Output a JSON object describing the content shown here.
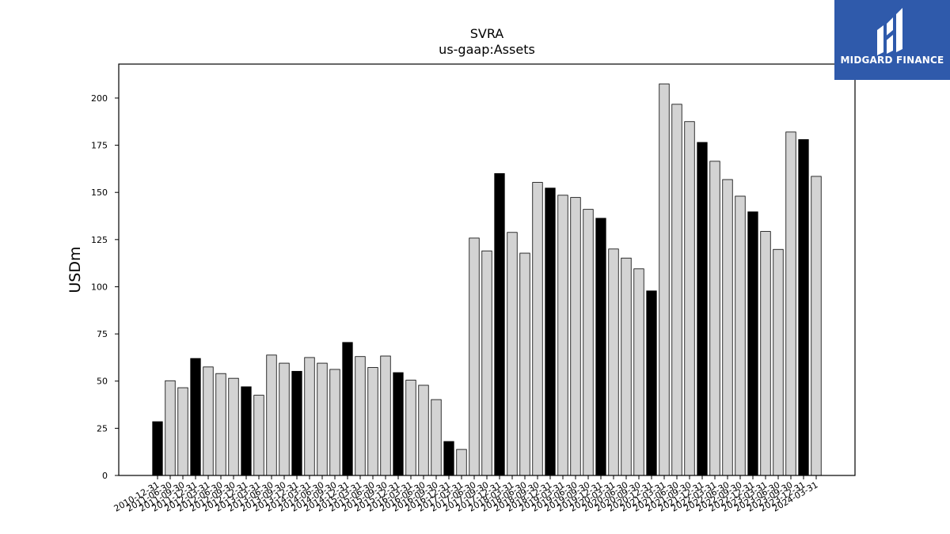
{
  "chart_data": {
    "type": "bar",
    "title": "SVRA",
    "subtitle": "us-gaap:Assets",
    "xlabel": "",
    "ylabel": "USDm",
    "ylim": [
      0,
      218
    ],
    "yticks": [
      0,
      25,
      50,
      75,
      100,
      125,
      150,
      175,
      200
    ],
    "grid": false,
    "legend": "none",
    "colors": {
      "annual": "#000000",
      "quarterly": "#d3d3d3",
      "edge": "#000000"
    },
    "categories": [
      "2010-12-31",
      "2011-06-30",
      "2011-09-30",
      "2011-12-31",
      "2012-03-31",
      "2012-06-30",
      "2012-09-30",
      "2012-12-31",
      "2013-03-31",
      "2013-06-30",
      "2013-09-30",
      "2013-12-31",
      "2014-03-31",
      "2014-06-30",
      "2014-09-30",
      "2014-12-31",
      "2015-03-31",
      "2015-06-30",
      "2015-09-30",
      "2015-12-31",
      "2016-03-31",
      "2016-06-30",
      "2016-09-30",
      "2016-12-31",
      "2017-03-31",
      "2017-06-30",
      "2017-09-30",
      "2017-12-31",
      "2018-03-31",
      "2018-06-30",
      "2018-09-30",
      "2018-12-31",
      "2019-03-31",
      "2019-06-30",
      "2019-09-30",
      "2019-12-31",
      "2020-03-31",
      "2020-06-30",
      "2020-09-30",
      "2020-12-31",
      "2021-03-31",
      "2021-06-30",
      "2021-09-30",
      "2021-12-31",
      "2022-03-31",
      "2022-06-30",
      "2022-09-30",
      "2022-12-31",
      "2023-03-31",
      "2023-06-30",
      "2023-09-30",
      "2023-12-31",
      "2024-03-31"
    ],
    "values": [
      28.5,
      50.2,
      46.5,
      62.0,
      57.5,
      54.0,
      51.5,
      47.0,
      42.5,
      63.8,
      59.5,
      55.2,
      62.5,
      59.5,
      56.2,
      70.5,
      63.0,
      57.2,
      63.3,
      54.5,
      50.5,
      47.8,
      40.2,
      18.0,
      13.8,
      125.8,
      119.0,
      160.0,
      128.8,
      117.8,
      155.3,
      152.3,
      148.5,
      147.3,
      141.0,
      136.3,
      120.0,
      115.2,
      109.5,
      97.8,
      207.5,
      196.7,
      187.5,
      176.5,
      166.5,
      156.8,
      148.0,
      139.7,
      129.3,
      119.8,
      182.0,
      178.0,
      158.5
    ],
    "highlight": [
      true,
      false,
      false,
      true,
      false,
      false,
      false,
      true,
      false,
      false,
      false,
      true,
      false,
      false,
      false,
      true,
      false,
      false,
      false,
      true,
      false,
      false,
      false,
      true,
      false,
      false,
      false,
      true,
      false,
      false,
      false,
      true,
      false,
      false,
      false,
      true,
      false,
      false,
      false,
      true,
      false,
      false,
      false,
      true,
      false,
      false,
      false,
      true,
      false,
      false,
      false,
      true,
      false
    ]
  },
  "logo": {
    "text": "MIDGARD FINANCE",
    "background": "#2f5aab",
    "icon": "midgard-logo-icon"
  }
}
